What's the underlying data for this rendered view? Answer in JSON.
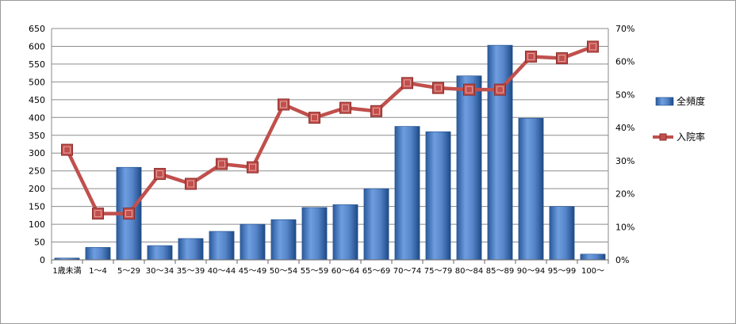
{
  "chart_data": {
    "type": "bar",
    "categories": [
      "1歳未満",
      "1～4",
      "5～29",
      "30～34",
      "35～39",
      "40～44",
      "45～49",
      "50～54",
      "55～59",
      "60～64",
      "65～69",
      "70～74",
      "75～79",
      "80～84",
      "85～89",
      "90～94",
      "95～99",
      "100～"
    ],
    "series": [
      {
        "name": "全頻度",
        "type": "bar",
        "axis": "left",
        "values": [
          5,
          35,
          260,
          40,
          60,
          80,
          100,
          113,
          147,
          155,
          200,
          375,
          360,
          517,
          603,
          398,
          150,
          16
        ]
      },
      {
        "name": "入院率",
        "type": "line",
        "axis": "right",
        "values": [
          0.333,
          0.14,
          0.14,
          0.26,
          0.23,
          0.29,
          0.28,
          0.47,
          0.43,
          0.46,
          0.45,
          0.535,
          0.52,
          0.515,
          0.515,
          0.615,
          0.61,
          0.645
        ]
      }
    ],
    "y_left": {
      "min": 0,
      "max": 650,
      "step": 50
    },
    "y_right": {
      "min": 0,
      "max": 0.7,
      "step": 0.1,
      "format": "percent"
    },
    "grid": true,
    "legend_position": "right",
    "colors": {
      "bar": "#4f81bd",
      "bar_dark": "#1f4e8c",
      "line": "#c0504d",
      "marker": "#c0504d",
      "grid": "#8c8c8c"
    }
  }
}
